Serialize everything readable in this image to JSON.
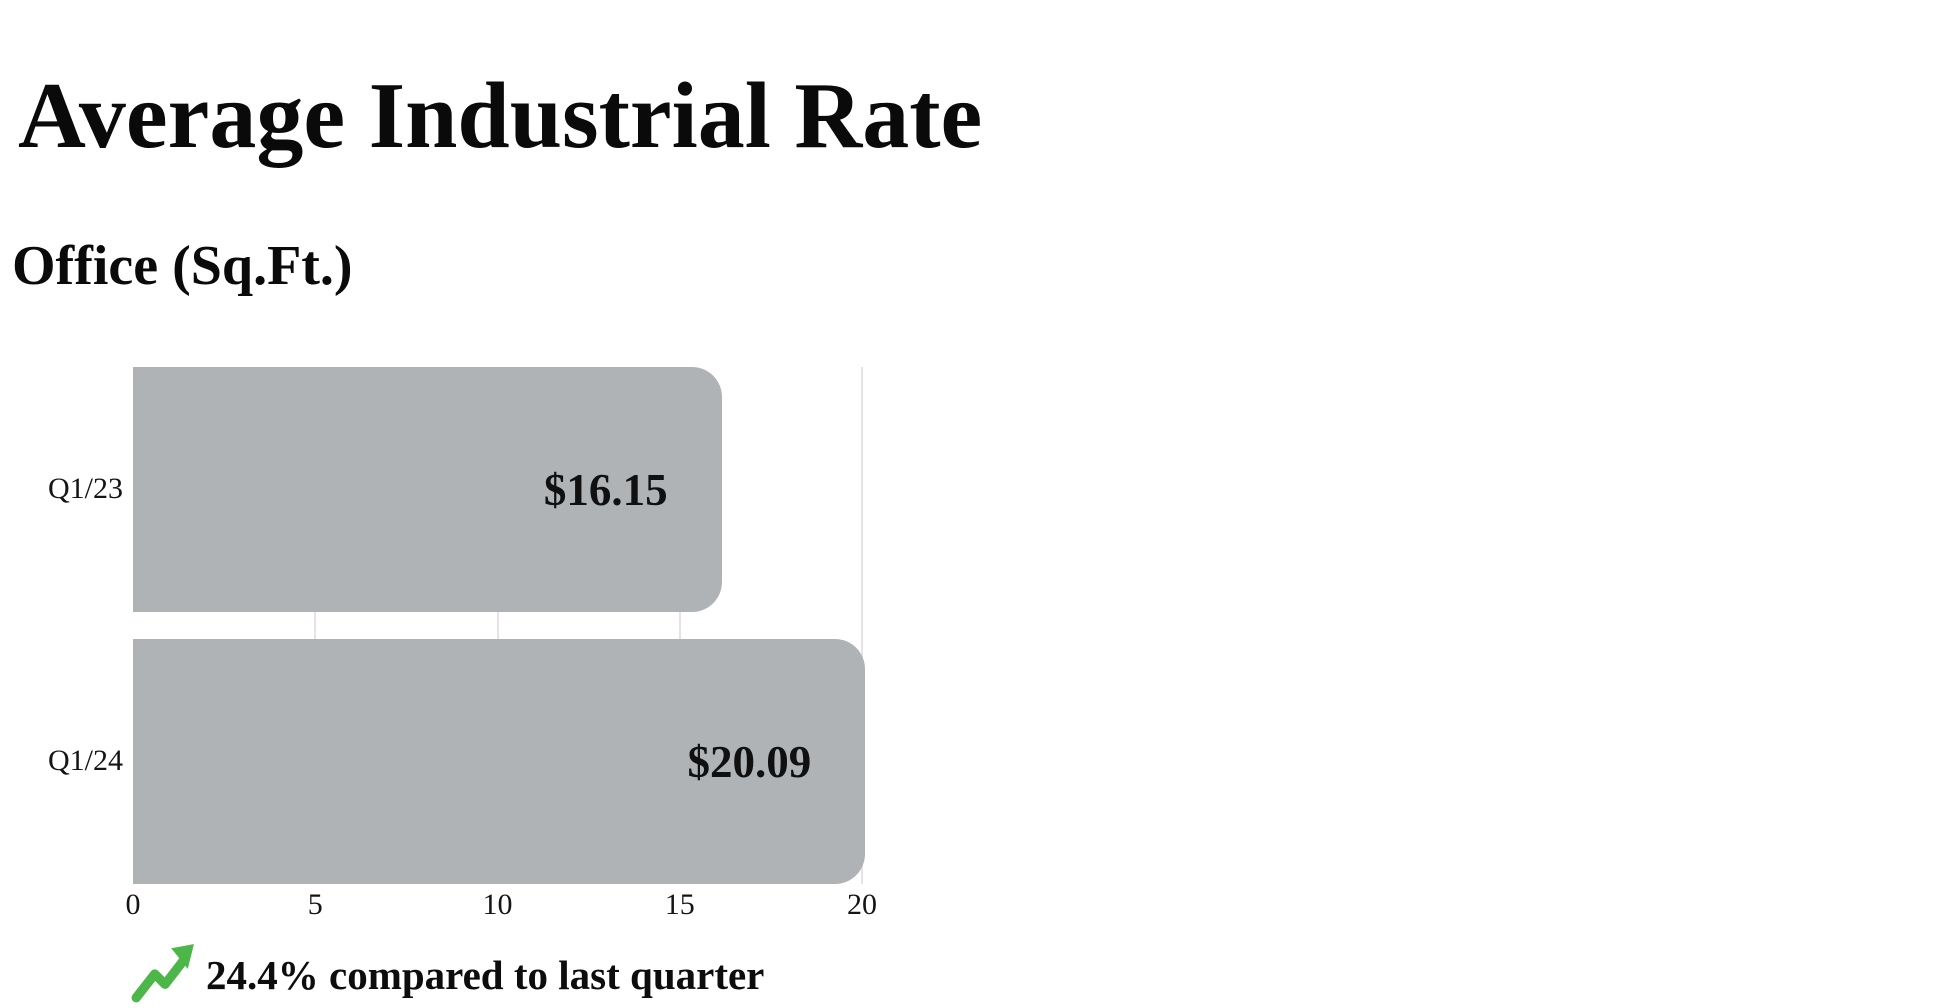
{
  "chart_data": {
    "type": "bar",
    "orientation": "horizontal",
    "title": "Average Industrial Rate",
    "subtitle": "Office (Sq.Ft.)",
    "categories": [
      "Q1/23",
      "Q1/24"
    ],
    "values": [
      16.15,
      20.09
    ],
    "value_labels": [
      "$16.15",
      "$20.09"
    ],
    "x_ticks": [
      "0",
      "5",
      "10",
      "15",
      "20"
    ],
    "xlim": [
      0,
      20
    ],
    "grid": "vertical",
    "legend": "none",
    "bar_color": "#afb3b6",
    "gridline_color": "#e4e4e7",
    "text_color": "#0d0d0d",
    "annotation": {
      "text": "24.4% compared to last quarter",
      "direction": "up",
      "icon": "trending-up-icon",
      "icon_color": "#4cb648"
    }
  }
}
